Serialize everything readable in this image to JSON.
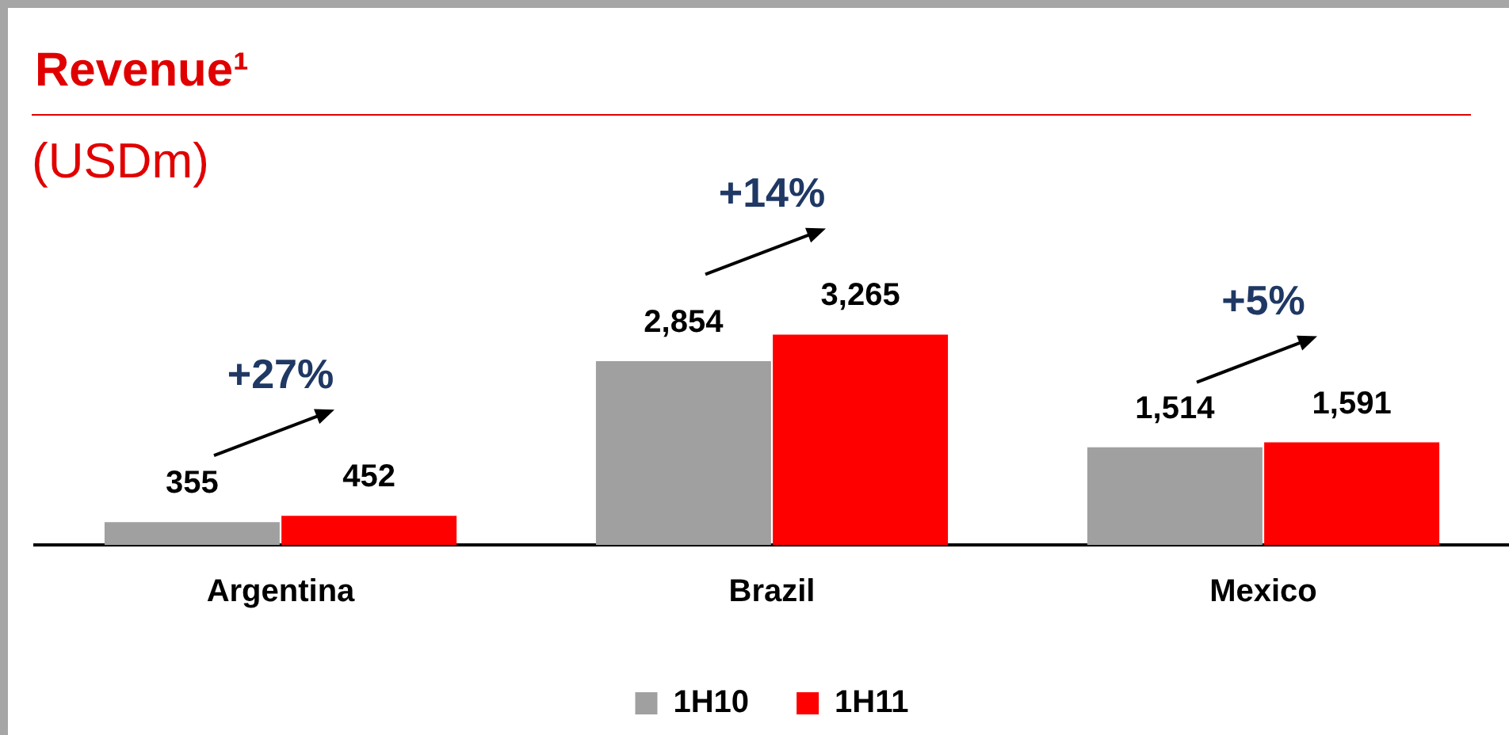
{
  "chart_data": {
    "type": "bar",
    "title": "Revenue¹",
    "subtitle": "(USDm)",
    "categories": [
      "Argentina",
      "Brazil",
      "Mexico"
    ],
    "series": [
      {
        "name": "1H10",
        "color": "#a0a0a0",
        "values": [
          355,
          2854,
          1514
        ],
        "value_labels": [
          "355",
          "2,854",
          "1,514"
        ]
      },
      {
        "name": "1H11",
        "color": "#ff0000",
        "values": [
          452,
          3265,
          1591
        ],
        "value_labels": [
          "452",
          "3,265",
          "1,591"
        ]
      }
    ],
    "legend": "bottom",
    "grid": false,
    "tick_labels": "x",
    "annotations": [
      "+27%",
      "+14%",
      "+5%"
    ]
  }
}
